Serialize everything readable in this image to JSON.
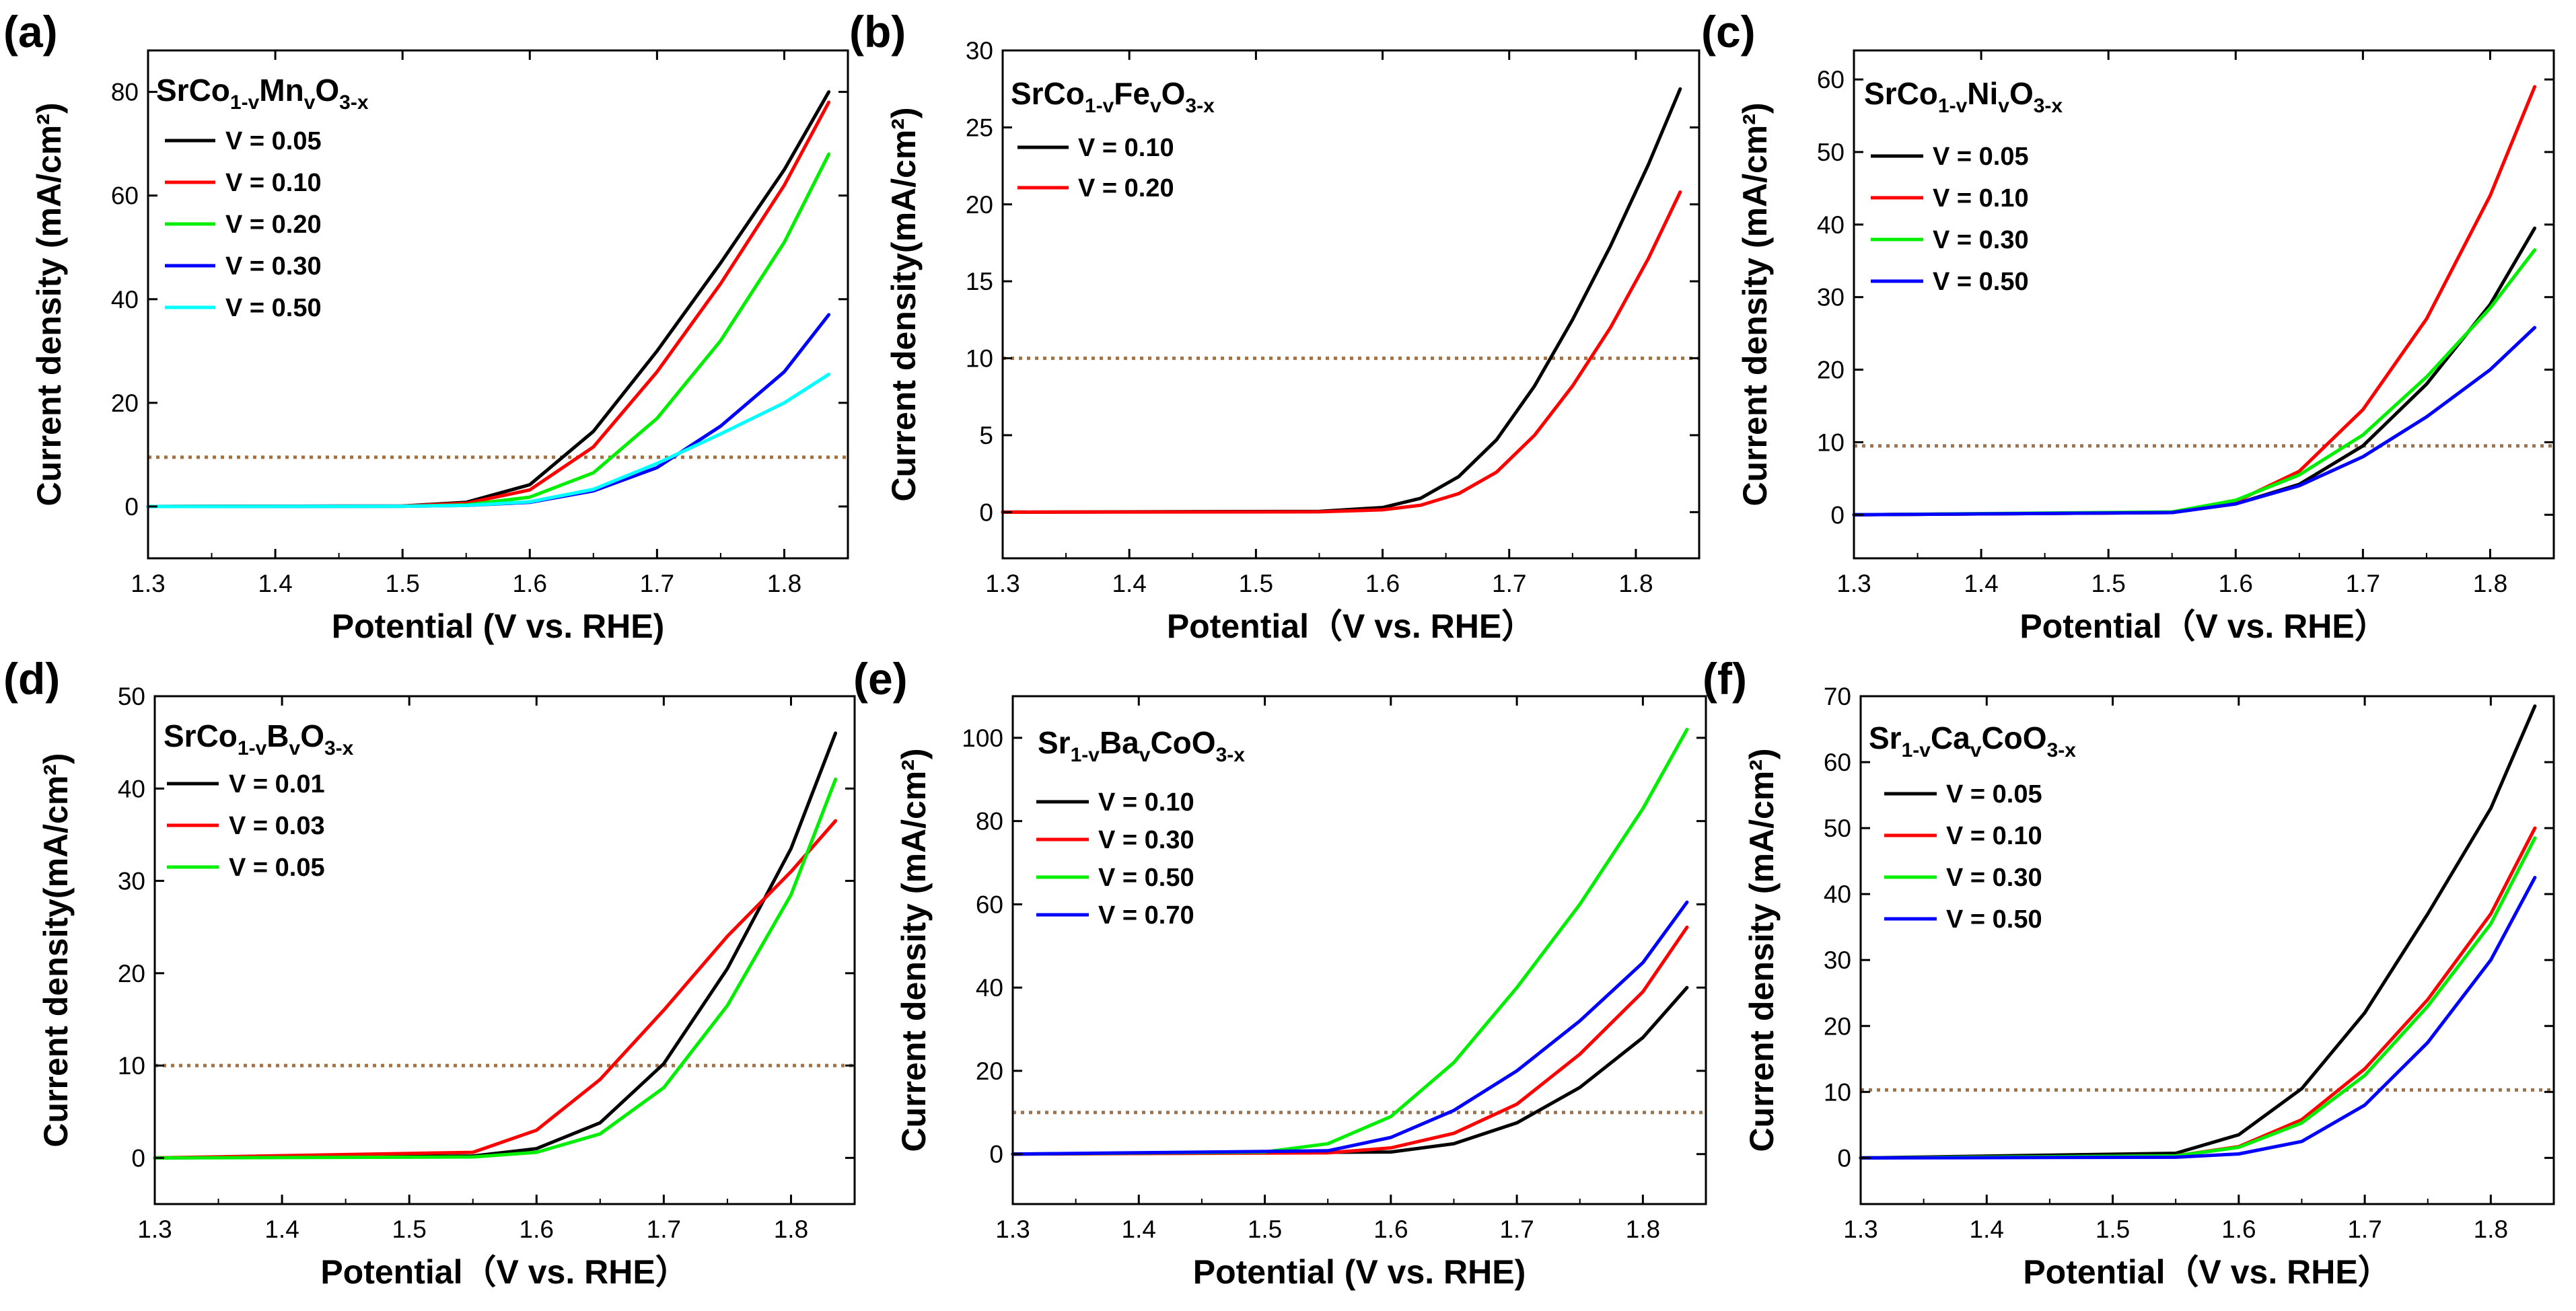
{
  "chart_data": [
    {
      "panel": "(a)",
      "type": "line",
      "formula": {
        "parts": [
          [
            "SrCo",
            "n"
          ],
          [
            "1-v",
            "s"
          ],
          [
            "Mn",
            "n"
          ],
          [
            "v",
            "s"
          ],
          [
            "O",
            "n"
          ],
          [
            "3-x",
            "s"
          ]
        ]
      },
      "xlabel": "Potential (V vs. RHE)",
      "ylabel": "Current density (mA/cm²)",
      "xlim": [
        1.3,
        1.85
      ],
      "ylim": [
        -10,
        88
      ],
      "xticks": [
        1.3,
        1.4,
        1.5,
        1.6,
        1.7,
        1.8
      ],
      "yticks": [
        0,
        20,
        40,
        60,
        80
      ],
      "reference_line": 9.5,
      "series": [
        {
          "name": "V = 0.05",
          "color": "#000000",
          "x": [
            1.3,
            1.5,
            1.55,
            1.6,
            1.65,
            1.7,
            1.75,
            1.8,
            1.835
          ],
          "y": [
            0,
            0.1,
            0.8,
            4.2,
            14.5,
            30,
            47,
            65,
            80
          ]
        },
        {
          "name": "V = 0.10",
          "color": "#ff0000",
          "x": [
            1.3,
            1.5,
            1.55,
            1.6,
            1.65,
            1.7,
            1.75,
            1.8,
            1.835
          ],
          "y": [
            0,
            0.1,
            0.6,
            3.2,
            11.5,
            26,
            43,
            62,
            78
          ]
        },
        {
          "name": "V = 0.20",
          "color": "#00ee00",
          "x": [
            1.3,
            1.5,
            1.55,
            1.6,
            1.65,
            1.7,
            1.75,
            1.8,
            1.835
          ],
          "y": [
            0,
            0.05,
            0.3,
            1.8,
            6.5,
            17,
            32,
            51,
            68
          ]
        },
        {
          "name": "V = 0.30",
          "color": "#0000ff",
          "x": [
            1.3,
            1.5,
            1.55,
            1.6,
            1.65,
            1.7,
            1.75,
            1.8,
            1.835
          ],
          "y": [
            0,
            0.05,
            0.2,
            0.8,
            3,
            7.5,
            15.5,
            26,
            37
          ]
        },
        {
          "name": "V = 0.50",
          "color": "#00ffff",
          "x": [
            1.3,
            1.5,
            1.55,
            1.6,
            1.65,
            1.7,
            1.75,
            1.8,
            1.835
          ],
          "y": [
            0,
            0.05,
            0.2,
            0.9,
            3.3,
            8.3,
            14,
            20,
            25.5
          ]
        }
      ]
    },
    {
      "panel": "(b)",
      "type": "line",
      "formula": {
        "parts": [
          [
            "SrCo",
            "n"
          ],
          [
            "1-v",
            "s"
          ],
          [
            "Fe",
            "n"
          ],
          [
            "v",
            "s"
          ],
          [
            "O",
            "n"
          ],
          [
            "3-x",
            "s"
          ]
        ]
      },
      "xlabel": "Potential（V vs. RHE）",
      "ylabel": "Current density(mA/cm²)",
      "xlim": [
        1.3,
        1.85
      ],
      "ylim": [
        -3,
        30
      ],
      "xticks": [
        1.3,
        1.4,
        1.5,
        1.6,
        1.7,
        1.8
      ],
      "yticks": [
        0,
        5,
        10,
        15,
        20,
        25,
        30
      ],
      "reference_line": 10,
      "series": [
        {
          "name": "V = 0.10",
          "color": "#000000",
          "x": [
            1.3,
            1.55,
            1.6,
            1.63,
            1.66,
            1.69,
            1.72,
            1.75,
            1.78,
            1.81,
            1.835
          ],
          "y": [
            0,
            0.05,
            0.3,
            0.9,
            2.3,
            4.7,
            8.2,
            12.5,
            17.3,
            22.6,
            27.5
          ]
        },
        {
          "name": "V = 0.20",
          "color": "#ff0000",
          "x": [
            1.3,
            1.55,
            1.6,
            1.63,
            1.66,
            1.69,
            1.72,
            1.75,
            1.78,
            1.81,
            1.835
          ],
          "y": [
            0,
            0.02,
            0.15,
            0.45,
            1.2,
            2.6,
            5,
            8.2,
            12,
            16.5,
            20.8
          ]
        }
      ]
    },
    {
      "panel": "(c)",
      "type": "line",
      "formula": {
        "parts": [
          [
            "SrCo",
            "n"
          ],
          [
            "1-v",
            "s"
          ],
          [
            "Ni",
            "n"
          ],
          [
            "v",
            "s"
          ],
          [
            "O",
            "n"
          ],
          [
            "3-x",
            "s"
          ]
        ]
      },
      "xlabel": "Potential（V vs. RHE）",
      "ylabel": "Current density (mA/cm²)",
      "xlim": [
        1.3,
        1.85
      ],
      "ylim": [
        -6,
        64
      ],
      "xticks": [
        1.3,
        1.4,
        1.5,
        1.6,
        1.7,
        1.8
      ],
      "yticks": [
        0,
        10,
        20,
        30,
        40,
        50,
        60
      ],
      "reference_line": 9.5,
      "series": [
        {
          "name": "V = 0.05",
          "color": "#000000",
          "x": [
            1.3,
            1.55,
            1.6,
            1.65,
            1.7,
            1.75,
            1.8,
            1.835
          ],
          "y": [
            0,
            0.3,
            1.5,
            4.2,
            9.5,
            18,
            29,
            39.5
          ]
        },
        {
          "name": "V = 0.10",
          "color": "#ff0000",
          "x": [
            1.3,
            1.55,
            1.6,
            1.65,
            1.7,
            1.75,
            1.8,
            1.835
          ],
          "y": [
            0,
            0.3,
            1.8,
            6,
            14.5,
            27,
            44,
            59
          ]
        },
        {
          "name": "V = 0.30",
          "color": "#00ee00",
          "x": [
            1.3,
            1.55,
            1.6,
            1.65,
            1.7,
            1.75,
            1.8,
            1.835
          ],
          "y": [
            0,
            0.4,
            2,
            5.5,
            11,
            19,
            28.5,
            36.5
          ]
        },
        {
          "name": "V = 0.50",
          "color": "#0000ff",
          "x": [
            1.3,
            1.55,
            1.6,
            1.65,
            1.7,
            1.75,
            1.8,
            1.835
          ],
          "y": [
            0,
            0.3,
            1.5,
            4,
            8,
            13.5,
            20,
            25.8
          ]
        }
      ]
    },
    {
      "panel": "(d)",
      "type": "line",
      "formula": {
        "parts": [
          [
            "SrCo",
            "n"
          ],
          [
            "1-v",
            "s"
          ],
          [
            "B",
            "n"
          ],
          [
            "v",
            "s"
          ],
          [
            "O",
            "n"
          ],
          [
            "3-x",
            "s"
          ]
        ]
      },
      "xlabel": "Potential（V vs. RHE）",
      "ylabel": "Current density(mA/cm²)",
      "xlim": [
        1.3,
        1.85
      ],
      "ylim": [
        -5,
        50
      ],
      "xticks": [
        1.3,
        1.4,
        1.5,
        1.6,
        1.7,
        1.8
      ],
      "yticks": [
        0,
        10,
        20,
        30,
        40,
        50
      ],
      "reference_line": 10,
      "series": [
        {
          "name": "V = 0.01",
          "color": "#000000",
          "x": [
            1.3,
            1.55,
            1.6,
            1.65,
            1.7,
            1.75,
            1.8,
            1.835
          ],
          "y": [
            0,
            0.2,
            1,
            3.8,
            10.2,
            20.5,
            33.5,
            46
          ]
        },
        {
          "name": "V = 0.03",
          "color": "#ff0000",
          "x": [
            1.3,
            1.55,
            1.6,
            1.65,
            1.7,
            1.75,
            1.8,
            1.835
          ],
          "y": [
            0,
            0.6,
            3,
            8.5,
            16,
            24,
            31,
            36.5
          ]
        },
        {
          "name": "V = 0.05",
          "color": "#00ee00",
          "x": [
            1.3,
            1.55,
            1.6,
            1.65,
            1.7,
            1.75,
            1.8,
            1.835
          ],
          "y": [
            0,
            0.1,
            0.6,
            2.6,
            7.6,
            16.5,
            28.5,
            41
          ]
        }
      ]
    },
    {
      "panel": "(e)",
      "type": "line",
      "formula": {
        "parts": [
          [
            "Sr",
            "n"
          ],
          [
            "1-v",
            "s"
          ],
          [
            "Ba",
            "n"
          ],
          [
            "v",
            "s"
          ],
          [
            "CoO",
            "n"
          ],
          [
            "3-x",
            "s"
          ]
        ]
      },
      "xlabel": "Potential (V vs. RHE)",
      "ylabel": "Current density (mA/cm²)",
      "xlim": [
        1.3,
        1.85
      ],
      "ylim": [
        -12,
        110
      ],
      "xticks": [
        1.3,
        1.4,
        1.5,
        1.6,
        1.7,
        1.8
      ],
      "yticks": [
        0,
        20,
        40,
        60,
        80,
        100
      ],
      "reference_line": 10,
      "series": [
        {
          "name": "V = 0.10",
          "color": "#000000",
          "x": [
            1.3,
            1.6,
            1.65,
            1.7,
            1.75,
            1.8,
            1.835
          ],
          "y": [
            0,
            0.5,
            2.5,
            7.5,
            16,
            28,
            40
          ]
        },
        {
          "name": "V = 0.30",
          "color": "#ff0000",
          "x": [
            1.3,
            1.55,
            1.6,
            1.65,
            1.7,
            1.75,
            1.8,
            1.835
          ],
          "y": [
            0,
            0.3,
            1.5,
            5,
            12,
            24,
            39,
            54.5
          ]
        },
        {
          "name": "V = 0.50",
          "color": "#00ee00",
          "x": [
            1.3,
            1.5,
            1.55,
            1.6,
            1.65,
            1.7,
            1.75,
            1.8,
            1.835
          ],
          "y": [
            0,
            0.5,
            2.5,
            9,
            22,
            40,
            60,
            83,
            102
          ]
        },
        {
          "name": "V = 0.70",
          "color": "#0000ff",
          "x": [
            1.3,
            1.55,
            1.6,
            1.65,
            1.7,
            1.75,
            1.8,
            1.835
          ],
          "y": [
            0,
            0.8,
            4,
            10.5,
            20,
            32,
            46,
            60.5
          ]
        }
      ]
    },
    {
      "panel": "(f)",
      "type": "line",
      "formula": {
        "parts": [
          [
            "Sr",
            "n"
          ],
          [
            "1-v",
            "s"
          ],
          [
            "Ca",
            "n"
          ],
          [
            "v",
            "s"
          ],
          [
            "CoO",
            "n"
          ],
          [
            "3-x",
            "s"
          ]
        ]
      },
      "xlabel": "Potential（V vs. RHE）",
      "ylabel": "Current density (mA/cm²)",
      "xlim": [
        1.3,
        1.85
      ],
      "ylim": [
        -7,
        70
      ],
      "xticks": [
        1.3,
        1.4,
        1.5,
        1.6,
        1.7,
        1.8
      ],
      "yticks": [
        0,
        10,
        20,
        30,
        40,
        50,
        60,
        70
      ],
      "reference_line": 10.3,
      "series": [
        {
          "name": "V = 0.05",
          "color": "#000000",
          "x": [
            1.3,
            1.55,
            1.6,
            1.65,
            1.7,
            1.75,
            1.8,
            1.835
          ],
          "y": [
            0,
            0.7,
            3.5,
            10.5,
            22,
            37,
            53,
            68.5
          ]
        },
        {
          "name": "V = 0.10",
          "color": "#ff0000",
          "x": [
            1.3,
            1.55,
            1.6,
            1.65,
            1.7,
            1.75,
            1.8,
            1.835
          ],
          "y": [
            0,
            0.3,
            1.7,
            5.8,
            13.5,
            24,
            37,
            50
          ]
        },
        {
          "name": "V = 0.30",
          "color": "#00ee00",
          "x": [
            1.3,
            1.55,
            1.6,
            1.65,
            1.7,
            1.75,
            1.8,
            1.835
          ],
          "y": [
            0,
            0.3,
            1.6,
            5.3,
            12.5,
            23,
            35.5,
            48.5
          ]
        },
        {
          "name": "V = 0.50",
          "color": "#0000ff",
          "x": [
            1.3,
            1.55,
            1.6,
            1.65,
            1.7,
            1.75,
            1.8,
            1.835
          ],
          "y": [
            0,
            0.1,
            0.6,
            2.5,
            8,
            17.5,
            30,
            42.5
          ]
        }
      ]
    }
  ]
}
